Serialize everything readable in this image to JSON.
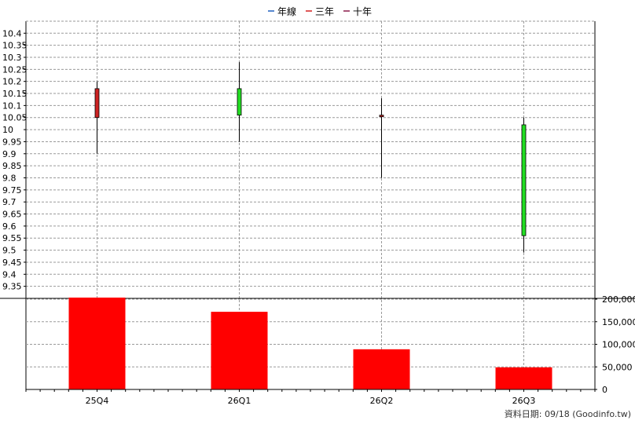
{
  "chart_data": {
    "type": "candlestick",
    "legend": {
      "placement": "top-center",
      "items": [
        {
          "label": "年線",
          "color": "#1f5fbf"
        },
        {
          "label": "三年",
          "color": "#d42020"
        },
        {
          "label": "十年",
          "color": "#8a1a4a"
        }
      ]
    },
    "categories": [
      "25Q4",
      "26Q1",
      "26Q2",
      "26Q3"
    ],
    "price": {
      "ylim": [
        9.3,
        10.44
      ],
      "ticks": [
        "10.4",
        "10.35",
        "10.3",
        "10.25",
        "10.2",
        "10.15",
        "10.1",
        "10.05",
        "10",
        "9.95",
        "9.9",
        "9.85",
        "9.8",
        "9.75",
        "9.7",
        "9.65",
        "9.6",
        "9.55",
        "9.5",
        "9.45",
        "9.4",
        "9.35"
      ],
      "candles": [
        {
          "label": "25Q4",
          "open": 10.05,
          "high": 10.2,
          "low": 9.9,
          "close": 10.17,
          "color": "#cc2222"
        },
        {
          "label": "26Q1",
          "open": 10.06,
          "high": 10.28,
          "low": 9.95,
          "close": 10.17,
          "color": "#22dd22"
        },
        {
          "label": "26Q2",
          "open": 10.06,
          "high": 10.13,
          "low": 9.8,
          "close": 10.055,
          "color": "#cc2222"
        },
        {
          "label": "26Q3",
          "open": 10.02,
          "high": 10.05,
          "low": 9.49,
          "close": 9.56,
          "color": "#22dd22"
        }
      ]
    },
    "volume": {
      "ylim": [
        0,
        200000
      ],
      "tick_labels": [
        "200,000",
        "150,000",
        "100,000",
        "50,000",
        "0"
      ],
      "values": [
        205000,
        172000,
        89000,
        49000
      ],
      "color": "#ff0000"
    },
    "grid": true,
    "footer": "資料日期: 09/18  (Goodinfo.tw)"
  },
  "colors": {
    "grid": "#9a9a9a",
    "axis": "#000000"
  }
}
